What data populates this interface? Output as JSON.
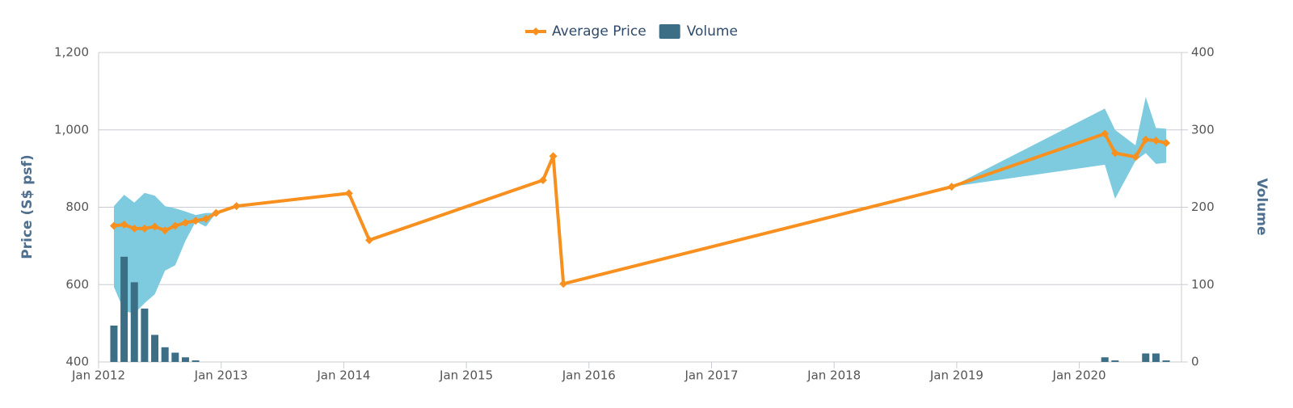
{
  "chart_data": {
    "type": "line",
    "y_label": "Price (S$ psf)",
    "y2_label": "Volume",
    "xlim": [
      "2012-01",
      "2020-11"
    ],
    "xticks": [
      {
        "value": "2012-01",
        "label": "Jan 2012"
      },
      {
        "value": "2013-01",
        "label": "Jan 2013"
      },
      {
        "value": "2014-01",
        "label": "Jan 2014"
      },
      {
        "value": "2015-01",
        "label": "Jan 2015"
      },
      {
        "value": "2016-01",
        "label": "Jan 2016"
      },
      {
        "value": "2017-01",
        "label": "Jan 2017"
      },
      {
        "value": "2018-01",
        "label": "Jan 2018"
      },
      {
        "value": "2019-01",
        "label": "Jan 2019"
      },
      {
        "value": "2020-01",
        "label": "Jan 2020"
      }
    ],
    "ylim": [
      400,
      1200
    ],
    "yticks": [
      400,
      600,
      800,
      {
        "value": 1000,
        "label": "1,000"
      },
      {
        "value": 1200,
        "label": "1,200"
      }
    ],
    "y2lim": [
      0,
      400
    ],
    "y2ticks": [
      0,
      100,
      200,
      300,
      400
    ],
    "grid": true,
    "legend": "top",
    "range": {
      "color": "#7ecbe0",
      "x": [
        "2012-02",
        "2012-03",
        "2012-04",
        "2012-05",
        "2012-06",
        "2012-07",
        "2012-08",
        "2012-09",
        "2012-10",
        "2012-11",
        "2012-12",
        "2013-02",
        "2014-01",
        "2014-03",
        "2015-08",
        "2015-09",
        "2015-10",
        "2018-12",
        "2020-03",
        "2020-04",
        "2020-06",
        "2020-07",
        "2020-08",
        "2020-09"
      ],
      "low": [
        594,
        532,
        525,
        552,
        575,
        636,
        650,
        713,
        763,
        750,
        785,
        803,
        836,
        715,
        870,
        932,
        602,
        853,
        910,
        822,
        920,
        940,
        912,
        915
      ],
      "high": [
        803,
        832,
        812,
        837,
        830,
        803,
        797,
        789,
        780,
        785,
        785,
        803,
        836,
        715,
        870,
        932,
        602,
        853,
        1055,
        1000,
        960,
        1085,
        1005,
        1003
      ]
    },
    "series": [
      {
        "name": "Average Price",
        "color": "#f7901e",
        "type": "line",
        "x": [
          "2012-02",
          "2012-03",
          "2012-04",
          "2012-05",
          "2012-06",
          "2012-07",
          "2012-08",
          "2012-09",
          "2012-10",
          "2012-11",
          "2012-12",
          "2013-02",
          "2014-01",
          "2014-03",
          "2015-08",
          "2015-09",
          "2015-10",
          "2018-12",
          "2020-03",
          "2020-04",
          "2020-06",
          "2020-07",
          "2020-08",
          "2020-09"
        ],
        "values": [
          752,
          755,
          745,
          745,
          750,
          740,
          752,
          760,
          765,
          770,
          785,
          803,
          836,
          715,
          870,
          932,
          602,
          853,
          990,
          940,
          930,
          975,
          972,
          966
        ]
      },
      {
        "name": "Volume",
        "color": "#3c6e86",
        "type": "bar",
        "axis": "y2",
        "x": [
          "2012-02",
          "2012-03",
          "2012-04",
          "2012-05",
          "2012-06",
          "2012-07",
          "2012-08",
          "2012-09",
          "2012-10",
          "2020-03",
          "2020-04",
          "2020-07",
          "2020-08",
          "2020-09"
        ],
        "values": [
          47,
          136,
          103,
          69,
          35,
          19,
          12,
          6,
          2,
          6,
          2,
          11,
          11,
          2
        ]
      }
    ]
  }
}
